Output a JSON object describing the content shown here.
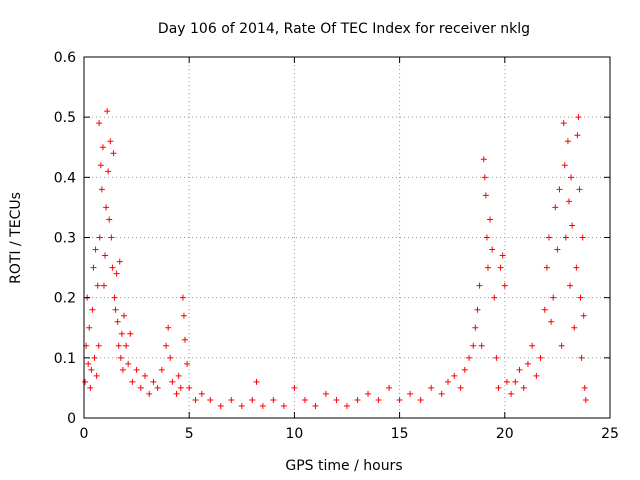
{
  "chart_data": {
    "type": "scatter",
    "title": "Day 106 of 2014, Rate Of TEC Index for receiver nklg",
    "xlabel": "GPS time / hours",
    "ylabel": "ROTI / TECUs",
    "xlim": [
      0,
      25
    ],
    "ylim": [
      0,
      0.6
    ],
    "xticks": [
      0,
      5,
      10,
      15,
      20,
      25
    ],
    "yticks": [
      0,
      0.1,
      0.2,
      0.3,
      0.4,
      0.5,
      0.6
    ],
    "xtick_labels": [
      "0",
      "5",
      "10",
      "15",
      "20",
      "25"
    ],
    "ytick_labels": [
      "0",
      "0.1",
      "0.2",
      "0.3",
      "0.4",
      "0.5",
      "0.6"
    ],
    "grid": true,
    "marker": "+",
    "series_color": "#ff0000",
    "series": [
      {
        "name": "ROTI",
        "points": [
          [
            0.05,
            0.06
          ],
          [
            0.1,
            0.12
          ],
          [
            0.15,
            0.2
          ],
          [
            0.2,
            0.09
          ],
          [
            0.25,
            0.15
          ],
          [
            0.3,
            0.05
          ],
          [
            0.35,
            0.08
          ],
          [
            0.4,
            0.18
          ],
          [
            0.45,
            0.25
          ],
          [
            0.5,
            0.1
          ],
          [
            0.55,
            0.28
          ],
          [
            0.6,
            0.07
          ],
          [
            0.65,
            0.22
          ],
          [
            0.7,
            0.12
          ],
          [
            0.72,
            0.49
          ],
          [
            0.75,
            0.3
          ],
          [
            0.8,
            0.42
          ],
          [
            0.85,
            0.38
          ],
          [
            0.9,
            0.45
          ],
          [
            0.95,
            0.22
          ],
          [
            1.0,
            0.27
          ],
          [
            1.05,
            0.35
          ],
          [
            1.1,
            0.51
          ],
          [
            1.15,
            0.41
          ],
          [
            1.2,
            0.33
          ],
          [
            1.25,
            0.46
          ],
          [
            1.3,
            0.3
          ],
          [
            1.35,
            0.25
          ],
          [
            1.4,
            0.44
          ],
          [
            1.45,
            0.2
          ],
          [
            1.5,
            0.18
          ],
          [
            1.55,
            0.24
          ],
          [
            1.6,
            0.16
          ],
          [
            1.65,
            0.12
          ],
          [
            1.7,
            0.26
          ],
          [
            1.75,
            0.1
          ],
          [
            1.8,
            0.14
          ],
          [
            1.85,
            0.08
          ],
          [
            1.9,
            0.17
          ],
          [
            2.0,
            0.12
          ],
          [
            2.1,
            0.09
          ],
          [
            2.2,
            0.14
          ],
          [
            2.3,
            0.06
          ],
          [
            2.5,
            0.08
          ],
          [
            2.7,
            0.05
          ],
          [
            2.9,
            0.07
          ],
          [
            3.1,
            0.04
          ],
          [
            3.3,
            0.06
          ],
          [
            3.5,
            0.05
          ],
          [
            3.7,
            0.08
          ],
          [
            3.9,
            0.12
          ],
          [
            4.0,
            0.15
          ],
          [
            4.1,
            0.1
          ],
          [
            4.2,
            0.06
          ],
          [
            4.4,
            0.04
          ],
          [
            4.5,
            0.07
          ],
          [
            4.6,
            0.05
          ],
          [
            4.7,
            0.2
          ],
          [
            4.75,
            0.17
          ],
          [
            4.8,
            0.13
          ],
          [
            4.9,
            0.09
          ],
          [
            5.0,
            0.05
          ],
          [
            5.3,
            0.03
          ],
          [
            5.6,
            0.04
          ],
          [
            6.0,
            0.03
          ],
          [
            6.5,
            0.02
          ],
          [
            7.0,
            0.03
          ],
          [
            7.5,
            0.02
          ],
          [
            8.0,
            0.03
          ],
          [
            8.2,
            0.06
          ],
          [
            8.5,
            0.02
          ],
          [
            9.0,
            0.03
          ],
          [
            9.5,
            0.02
          ],
          [
            10.0,
            0.05
          ],
          [
            10.5,
            0.03
          ],
          [
            11.0,
            0.02
          ],
          [
            11.5,
            0.04
          ],
          [
            12.0,
            0.03
          ],
          [
            12.5,
            0.02
          ],
          [
            13.0,
            0.03
          ],
          [
            13.5,
            0.04
          ],
          [
            14.0,
            0.03
          ],
          [
            14.5,
            0.05
          ],
          [
            15.0,
            0.03
          ],
          [
            15.5,
            0.04
          ],
          [
            16.0,
            0.03
          ],
          [
            16.5,
            0.05
          ],
          [
            17.0,
            0.04
          ],
          [
            17.3,
            0.06
          ],
          [
            17.6,
            0.07
          ],
          [
            17.9,
            0.05
          ],
          [
            18.1,
            0.08
          ],
          [
            18.3,
            0.1
          ],
          [
            18.5,
            0.12
          ],
          [
            18.6,
            0.15
          ],
          [
            18.7,
            0.18
          ],
          [
            18.8,
            0.22
          ],
          [
            18.9,
            0.12
          ],
          [
            19.0,
            0.43
          ],
          [
            19.05,
            0.4
          ],
          [
            19.1,
            0.37
          ],
          [
            19.15,
            0.3
          ],
          [
            19.2,
            0.25
          ],
          [
            19.3,
            0.33
          ],
          [
            19.4,
            0.28
          ],
          [
            19.5,
            0.2
          ],
          [
            19.6,
            0.1
          ],
          [
            19.7,
            0.05
          ],
          [
            19.8,
            0.25
          ],
          [
            19.9,
            0.27
          ],
          [
            20.0,
            0.22
          ],
          [
            20.1,
            0.06
          ],
          [
            20.3,
            0.04
          ],
          [
            20.5,
            0.06
          ],
          [
            20.7,
            0.08
          ],
          [
            20.9,
            0.05
          ],
          [
            21.1,
            0.09
          ],
          [
            21.3,
            0.12
          ],
          [
            21.5,
            0.07
          ],
          [
            21.7,
            0.1
          ],
          [
            21.9,
            0.18
          ],
          [
            22.0,
            0.25
          ],
          [
            22.1,
            0.3
          ],
          [
            22.2,
            0.16
          ],
          [
            22.3,
            0.2
          ],
          [
            22.4,
            0.35
          ],
          [
            22.5,
            0.28
          ],
          [
            22.6,
            0.38
          ],
          [
            22.7,
            0.12
          ],
          [
            22.8,
            0.49
          ],
          [
            22.85,
            0.42
          ],
          [
            22.9,
            0.3
          ],
          [
            23.0,
            0.46
          ],
          [
            23.05,
            0.36
          ],
          [
            23.1,
            0.22
          ],
          [
            23.15,
            0.4
          ],
          [
            23.2,
            0.32
          ],
          [
            23.3,
            0.15
          ],
          [
            23.4,
            0.25
          ],
          [
            23.45,
            0.47
          ],
          [
            23.5,
            0.5
          ],
          [
            23.55,
            0.38
          ],
          [
            23.6,
            0.2
          ],
          [
            23.65,
            0.1
          ],
          [
            23.7,
            0.3
          ],
          [
            23.75,
            0.17
          ],
          [
            23.8,
            0.05
          ],
          [
            23.85,
            0.03
          ]
        ]
      }
    ]
  }
}
